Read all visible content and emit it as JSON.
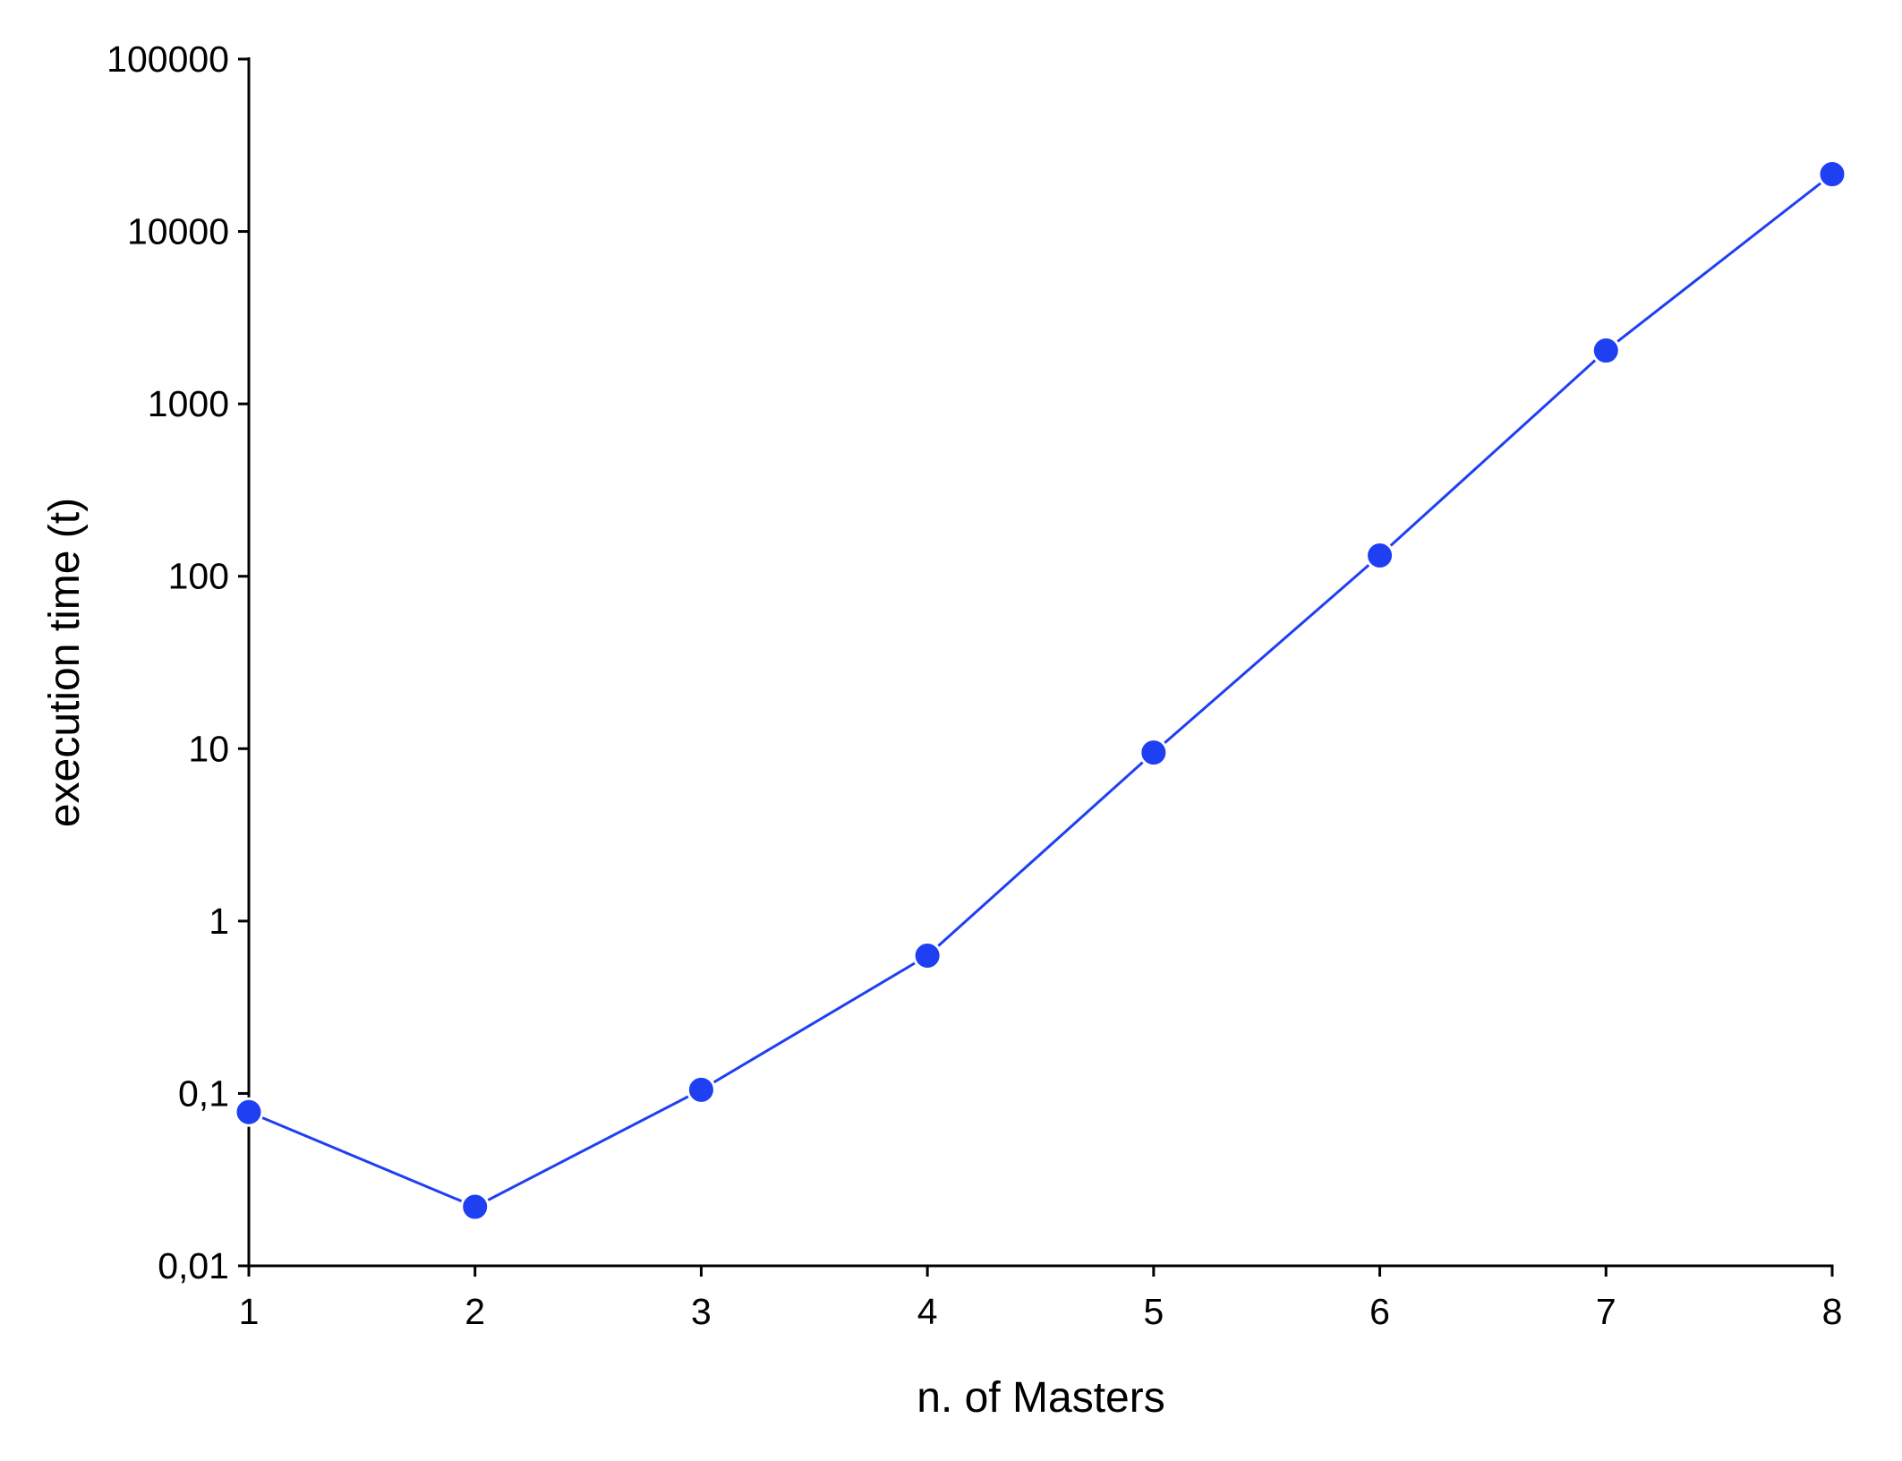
{
  "chart_data": {
    "type": "line",
    "x_label": "n. of Masters",
    "y_label": "execution time (t)",
    "x": [
      1,
      2,
      3,
      4,
      5,
      6,
      7,
      8
    ],
    "series": [
      {
        "color": "#1f3ff2",
        "values": [
          0.078,
          0.022,
          0.105,
          0.63,
          9.5,
          132,
          2040,
          21500
        ]
      }
    ],
    "xlim": [
      1,
      8
    ],
    "xticks": [
      1,
      2,
      3,
      4,
      5,
      6,
      7,
      8
    ],
    "ylim": [
      0.01,
      100000
    ],
    "y_scale": "log",
    "yticks": [
      {
        "value": 0.01,
        "label": "0,01"
      },
      {
        "value": 0.1,
        "label": "0,1"
      },
      1,
      10,
      100,
      1000,
      10000,
      100000
    ],
    "grid": false
  }
}
